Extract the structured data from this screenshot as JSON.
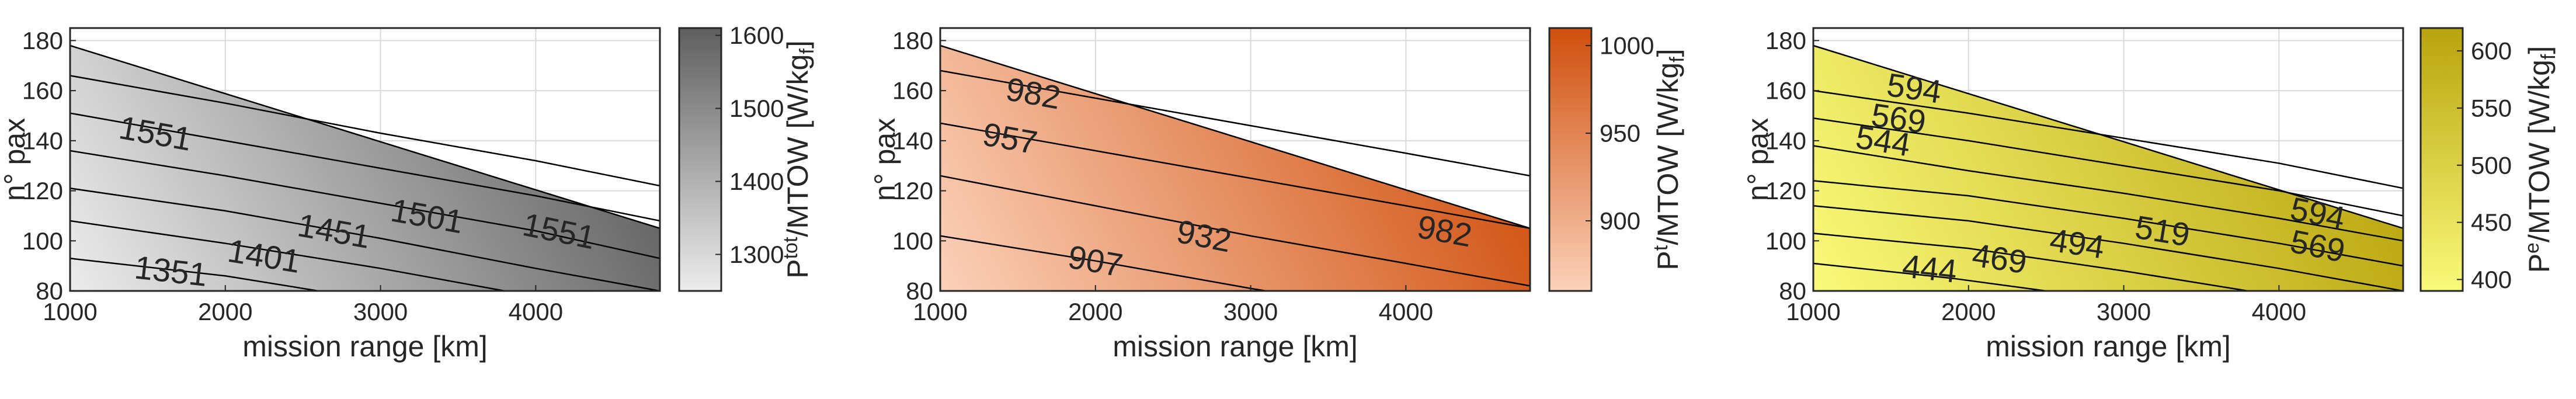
{
  "chart_data": [
    {
      "type": "heatmap",
      "subtype": "filled-contour",
      "xlabel": "mission range [km]",
      "ylabel": "n° pax",
      "xlim": [
        1000,
        4800
      ],
      "ylim": [
        80,
        185
      ],
      "xticks": [
        1000,
        2000,
        3000,
        4000
      ],
      "yticks": [
        80,
        100,
        120,
        140,
        160,
        180
      ],
      "grid": true,
      "valid_region_upper_edge": [
        [
          1000,
          178
        ],
        [
          4800,
          105
        ]
      ],
      "colorbar": {
        "label_main": "P",
        "label_sup": "tot",
        "label_rest": "/MTOW [W/kg",
        "label_sub": "f",
        "label_end": "]",
        "range": [
          1250,
          1610
        ],
        "ticks": [
          1300,
          1400,
          1500,
          1600
        ],
        "color_low": "#ececec",
        "color_high": "#5f5f5f"
      },
      "contours": [
        {
          "level": 1351,
          "points": [
            [
              1000,
              93
            ],
            [
              2000,
              86
            ],
            [
              2600,
              80
            ]
          ],
          "labels": [
            [
              1650,
              88
            ]
          ]
        },
        {
          "level": 1401,
          "points": [
            [
              1000,
              108
            ],
            [
              2000,
              99
            ],
            [
              3000,
              89
            ],
            [
              3800,
              80
            ]
          ],
          "labels": [
            [
              2250,
              94
            ]
          ]
        },
        {
          "level": 1451,
          "points": [
            [
              1000,
              121
            ],
            [
              2000,
              112
            ],
            [
              3000,
              101
            ],
            [
              4000,
              89
            ],
            [
              4800,
              80
            ]
          ],
          "labels": [
            [
              2700,
              104
            ]
          ]
        },
        {
          "level": 1501,
          "points": [
            [
              1000,
              136
            ],
            [
              2000,
              126
            ],
            [
              3000,
              115
            ],
            [
              4000,
              104
            ],
            [
              4800,
              93
            ]
          ],
          "labels": [
            [
              3300,
              110
            ]
          ]
        },
        {
          "level": 1551,
          "points": [
            [
              1000,
              151
            ],
            [
              2000,
              140
            ],
            [
              3000,
              129
            ],
            [
              4000,
              118
            ],
            [
              4800,
              108
            ]
          ],
          "labels": [
            [
              1550,
              143
            ],
            [
              4150,
              104
            ]
          ]
        },
        {
          "level": 1601,
          "points": [
            [
              1000,
              166
            ],
            [
              2000,
              155
            ],
            [
              3000,
              143
            ],
            [
              4000,
              132
            ],
            [
              4800,
              122
            ]
          ],
          "labels": []
        }
      ]
    },
    {
      "type": "heatmap",
      "subtype": "filled-contour",
      "xlabel": "mission range [km]",
      "ylabel": "n° pax",
      "xlim": [
        1000,
        4800
      ],
      "ylim": [
        80,
        185
      ],
      "xticks": [
        1000,
        2000,
        3000,
        4000
      ],
      "yticks": [
        80,
        100,
        120,
        140,
        160,
        180
      ],
      "grid": true,
      "valid_region_upper_edge": [
        [
          1000,
          178
        ],
        [
          4800,
          105
        ]
      ],
      "colorbar": {
        "label_main": "P",
        "label_sup": "t",
        "label_rest": "/MTOW [W/kg",
        "label_sub": "f",
        "label_end": "]",
        "range": [
          860,
          1010
        ],
        "ticks": [
          900,
          950,
          1000
        ],
        "color_low": "#fbd1b9",
        "color_high": "#d04f0d"
      },
      "contours": [
        {
          "level": 907,
          "points": [
            [
              1000,
              102
            ],
            [
              2000,
              92
            ],
            [
              3000,
              81
            ],
            [
              3100,
              80
            ]
          ],
          "labels": [
            [
              2000,
              92
            ]
          ]
        },
        {
          "level": 932,
          "points": [
            [
              1000,
              126
            ],
            [
              2000,
              114
            ],
            [
              3000,
              102
            ],
            [
              4000,
              91
            ],
            [
              4800,
              82
            ]
          ],
          "labels": [
            [
              2700,
              102
            ]
          ]
        },
        {
          "level": 957,
          "points": [
            [
              1000,
              147
            ],
            [
              2000,
              136
            ],
            [
              3000,
              125
            ],
            [
              4000,
              114
            ],
            [
              4800,
              105
            ]
          ],
          "labels": [
            [
              1450,
              141
            ]
          ]
        },
        {
          "level": 982,
          "points": [
            [
              1000,
              168
            ],
            [
              2000,
              157
            ],
            [
              3000,
              146
            ],
            [
              4000,
              135
            ],
            [
              4800,
              126
            ]
          ],
          "labels": [
            [
              1600,
              159
            ],
            [
              4250,
              104
            ]
          ]
        }
      ]
    },
    {
      "type": "heatmap",
      "subtype": "filled-contour",
      "xlabel": "mission range [km]",
      "ylabel": "n° pax",
      "xlim": [
        1000,
        4800
      ],
      "ylim": [
        80,
        185
      ],
      "xticks": [
        1000,
        2000,
        3000,
        4000
      ],
      "yticks": [
        80,
        100,
        120,
        140,
        160,
        180
      ],
      "grid": true,
      "valid_region_upper_edge": [
        [
          1000,
          178
        ],
        [
          4800,
          105
        ]
      ],
      "colorbar": {
        "label_main": "P",
        "label_sup": "e",
        "label_rest": "/MTOW [W/kg",
        "label_sub": "f",
        "label_end": "]",
        "range": [
          390,
          620
        ],
        "ticks": [
          400,
          450,
          500,
          550,
          600
        ],
        "color_low": "#fafa7a",
        "color_high": "#b8a40d"
      },
      "contours": [
        {
          "level": 444,
          "points": [
            [
              1000,
              91
            ],
            [
              1900,
              85
            ],
            [
              2500,
              80
            ]
          ],
          "labels": [
            [
              1750,
              89
            ]
          ]
        },
        {
          "level": 469,
          "points": [
            [
              1000,
              103
            ],
            [
              2000,
              97
            ],
            [
              3000,
              88
            ],
            [
              3800,
              80
            ]
          ],
          "labels": [
            [
              2200,
              93
            ]
          ]
        },
        {
          "level": 494,
          "points": [
            [
              1000,
              114
            ],
            [
              2000,
              108
            ],
            [
              3000,
              99
            ],
            [
              4000,
              89
            ],
            [
              4800,
              80
            ]
          ],
          "labels": [
            [
              2700,
              99
            ]
          ]
        },
        {
          "level": 519,
          "points": [
            [
              1000,
              124
            ],
            [
              2000,
              118
            ],
            [
              3000,
              109
            ],
            [
              4000,
              99
            ],
            [
              4800,
              90
            ]
          ],
          "labels": [
            [
              3250,
              104
            ]
          ]
        },
        {
          "level": 544,
          "points": [
            [
              1000,
              138
            ],
            [
              2000,
              128
            ],
            [
              3000,
              119
            ],
            [
              4000,
              109
            ],
            [
              4800,
              100
            ]
          ],
          "labels": [
            [
              1450,
              140
            ]
          ]
        },
        {
          "level": 569,
          "points": [
            [
              1000,
              149
            ],
            [
              2000,
              140
            ],
            [
              3000,
              130
            ],
            [
              4000,
              120
            ],
            [
              4800,
              110
            ]
          ],
          "labels": [
            [
              1550,
              149
            ],
            [
              4250,
              98
            ]
          ]
        },
        {
          "level": 594,
          "points": [
            [
              1000,
              160
            ],
            [
              2000,
              151
            ],
            [
              3000,
              141
            ],
            [
              4000,
              131
            ],
            [
              4800,
              121
            ]
          ],
          "labels": [
            [
              1650,
              161
            ],
            [
              4250,
              111
            ]
          ]
        }
      ]
    }
  ]
}
